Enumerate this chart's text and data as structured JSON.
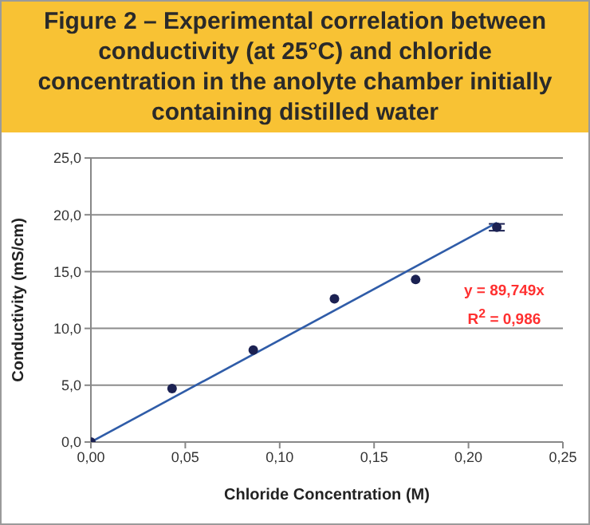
{
  "chart_data": {
    "type": "scatter",
    "title": "Figure 2 – Experimental correlation between conductivity (at 25°C) and chloride concentration in the anolyte chamber initially containing distilled water",
    "xlabel": "Chloride Concentration (M)",
    "ylabel": "Conductivity (mS/cm)",
    "series": [
      {
        "color": "#1b2152",
        "x": [
          0,
          0.043,
          0.086,
          0.129,
          0.172,
          0.215
        ],
        "values": [
          0,
          4.7,
          8.1,
          12.6,
          14.3,
          18.9
        ],
        "errors": [
          null,
          null,
          null,
          null,
          null,
          0.3
        ],
        "marker": "circle"
      },
      {
        "type": "line",
        "color": "#2f5ca8",
        "x": [
          0,
          0.215
        ],
        "values": [
          0,
          19.3
        ],
        "line_style": "solid",
        "marker": "none"
      }
    ],
    "annotations": [
      "y = 89,749x",
      "R$^{2}$ = 0,986"
    ],
    "xlim": [
      0,
      0.25
    ],
    "xticks": [
      {
        "value": 0,
        "label": "0,00"
      },
      {
        "value": 0.05,
        "label": "0,05"
      },
      {
        "value": 0.1,
        "label": "0,10"
      },
      {
        "value": 0.15,
        "label": "0,15"
      },
      {
        "value": 0.2,
        "label": "0,20"
      },
      {
        "value": 0.25,
        "label": "0,25"
      }
    ],
    "ylim": [
      0,
      25
    ],
    "yticks": [
      {
        "value": 0,
        "label": "0,0"
      },
      {
        "value": 5,
        "label": "5,0"
      },
      {
        "value": 10,
        "label": "10,0"
      },
      {
        "value": 15,
        "label": "15,0"
      },
      {
        "value": 20,
        "label": "20,0"
      },
      {
        "value": 25,
        "label": "25,0"
      }
    ],
    "grid": "y"
  }
}
